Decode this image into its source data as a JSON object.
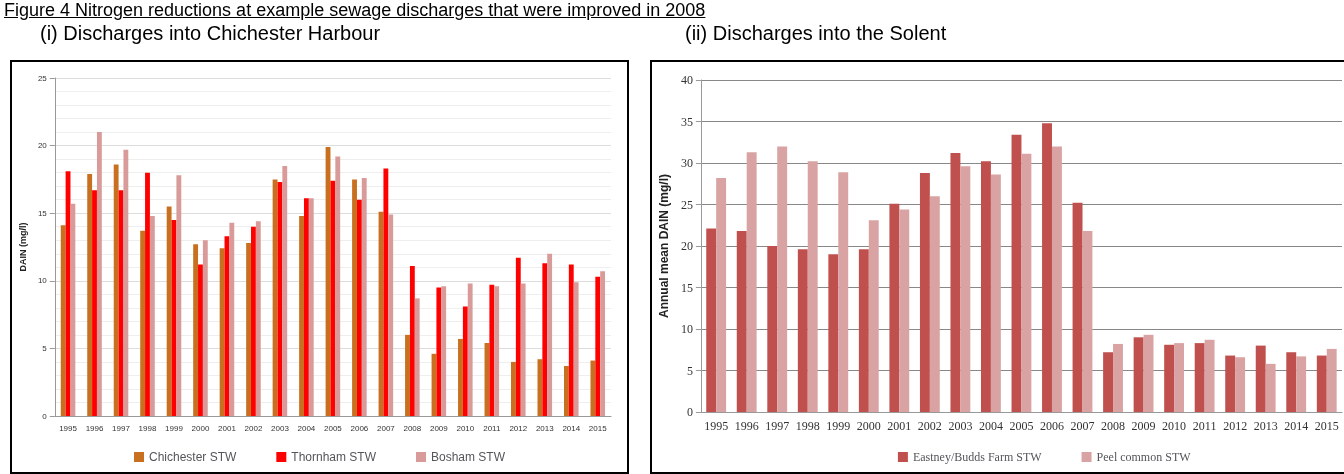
{
  "chart_data": [
    {
      "type": "bar",
      "title": "(i) Discharges into Chichester Harbour",
      "annotations": [
        "Figure 4 Nitrogen reductions at example sewage discharges that were improved in 2008"
      ],
      "ylabel": "DAIN (mg/l)",
      "categories": [
        "1995",
        "1996",
        "1997",
        "1998",
        "1999",
        "2000",
        "2001",
        "2002",
        "2003",
        "2004",
        "2005",
        "2006",
        "2007",
        "2008",
        "2009",
        "2010",
        "2011",
        "2012",
        "2013",
        "2014",
        "2015"
      ],
      "series": [
        {
          "name": "Chichester STW",
          "color": "#c87020",
          "values": [
            14.1,
            17.9,
            18.6,
            13.7,
            15.5,
            12.7,
            12.4,
            12.8,
            17.5,
            14.8,
            19.9,
            17.5,
            15.1,
            6.0,
            4.6,
            5.7,
            5.4,
            4.0,
            4.2,
            3.7,
            4.1
          ]
        },
        {
          "name": "Thornham STW",
          "color": "#ff0000",
          "values": [
            18.1,
            16.7,
            16.7,
            18.0,
            14.5,
            11.2,
            13.3,
            14.0,
            17.3,
            16.1,
            17.4,
            16.0,
            18.3,
            11.1,
            9.5,
            8.1,
            9.7,
            11.7,
            11.3,
            11.2,
            10.3
          ]
        },
        {
          "name": "Bosham STW",
          "color": "#d99a9a",
          "values": [
            15.7,
            21.0,
            19.7,
            14.8,
            17.8,
            13.0,
            14.3,
            14.4,
            18.5,
            16.1,
            19.2,
            17.6,
            14.9,
            8.7,
            9.6,
            9.8,
            9.6,
            9.8,
            12.0,
            9.9,
            10.7
          ]
        }
      ],
      "ylim": [
        0,
        25
      ],
      "yticks": [
        0,
        5,
        10,
        15,
        20,
        25
      ],
      "grid": "y",
      "legend": "bottom"
    },
    {
      "type": "bar",
      "title": "(ii) Discharges into the Solent",
      "ylabel": "Annual mean DAIN (mg/l)",
      "categories": [
        "1995",
        "1996",
        "1997",
        "1998",
        "1999",
        "2000",
        "2001",
        "2002",
        "2003",
        "2004",
        "2005",
        "2006",
        "2007",
        "2008",
        "2009",
        "2010",
        "2011",
        "2012",
        "2013",
        "2014",
        "2015"
      ],
      "series": [
        {
          "name": "Eastney/Budds Farm STW",
          "color": "#c0504d",
          "values": [
            22.1,
            21.8,
            20.0,
            19.6,
            19.0,
            19.6,
            25.1,
            28.8,
            31.2,
            30.2,
            33.4,
            34.8,
            25.2,
            7.2,
            9.0,
            8.1,
            8.3,
            6.8,
            8.0,
            7.2,
            6.8
          ]
        },
        {
          "name": "Peel common STW",
          "color": "#d9a3a3",
          "values": [
            28.2,
            31.3,
            32.0,
            30.2,
            28.9,
            23.1,
            24.4,
            26.0,
            29.6,
            28.6,
            31.1,
            32.0,
            21.8,
            8.2,
            9.3,
            8.3,
            8.7,
            6.6,
            5.8,
            6.7,
            7.6
          ]
        }
      ],
      "ylim": [
        0,
        40
      ],
      "yticks": [
        0,
        5,
        10,
        15,
        20,
        25,
        30,
        35,
        40
      ],
      "grid": "y",
      "legend": "bottom"
    }
  ]
}
